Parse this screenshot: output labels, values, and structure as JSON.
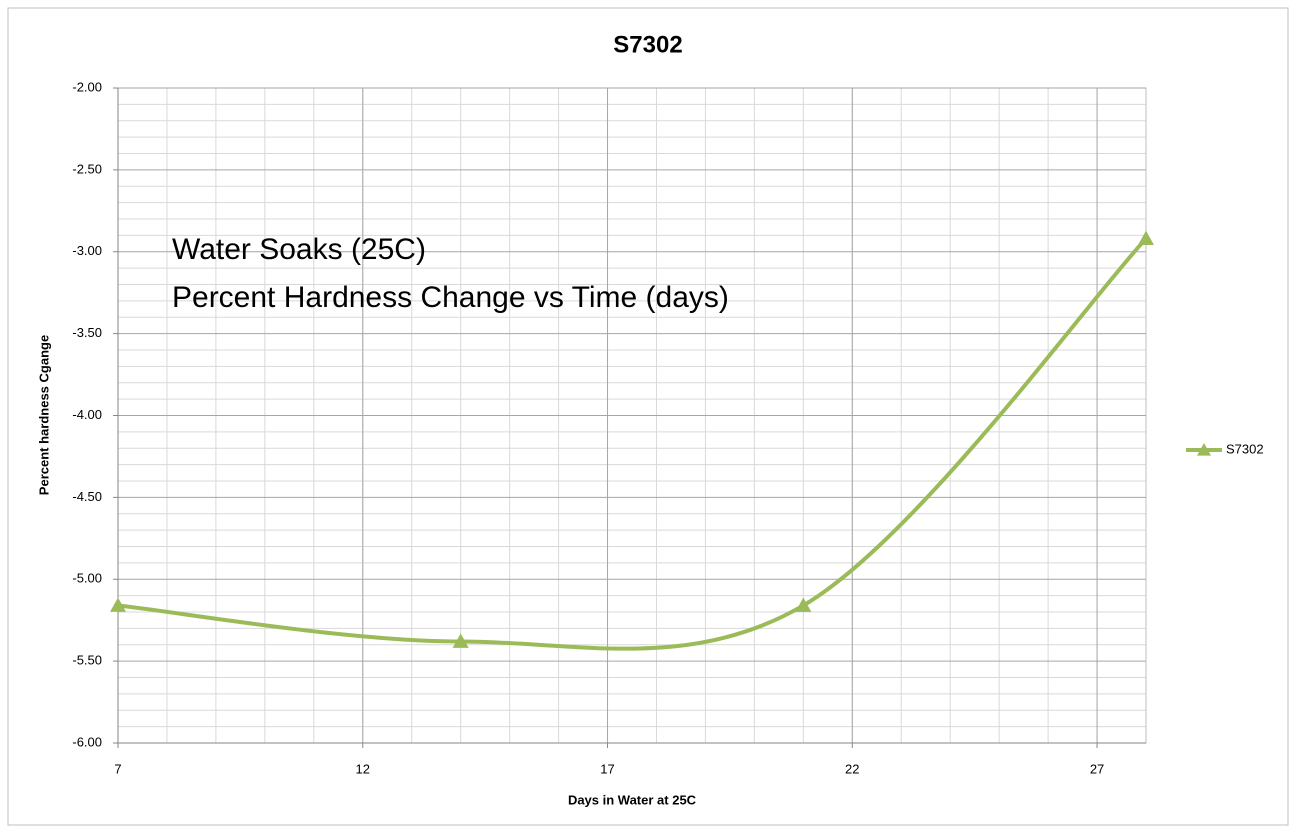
{
  "chart_data": {
    "type": "line",
    "title": "S7302",
    "annotations": [
      "Water Soaks (25C)",
      "Percent Hardness Change vs Time (days)"
    ],
    "x_label": "Days in Water at 25C",
    "y_label": "Percent hardness Cgange",
    "x": [
      7,
      14,
      21,
      28
    ],
    "series": [
      {
        "name": "S7302",
        "color": "#9bbb59",
        "values": [
          -5.16,
          -5.38,
          -5.16,
          -2.92
        ]
      }
    ],
    "xlim": [
      7,
      28
    ],
    "xticks": [
      7,
      12,
      17,
      22,
      27
    ],
    "ylim": [
      -6,
      -2
    ],
    "yticks": [
      {
        "value": -6,
        "label": "-6.00"
      },
      {
        "value": -5.5,
        "label": "-5.50"
      },
      {
        "value": -5,
        "label": "-5.00"
      },
      {
        "value": -4.5,
        "label": "-4.50"
      },
      {
        "value": -4,
        "label": "-4.00"
      },
      {
        "value": -3.5,
        "label": "-3.50"
      },
      {
        "value": -3,
        "label": "-3.00"
      },
      {
        "value": -2.5,
        "label": "-2.50"
      },
      {
        "value": -2,
        "label": "-2.00"
      }
    ],
    "grid": true,
    "smooth": true,
    "legend": "right"
  }
}
